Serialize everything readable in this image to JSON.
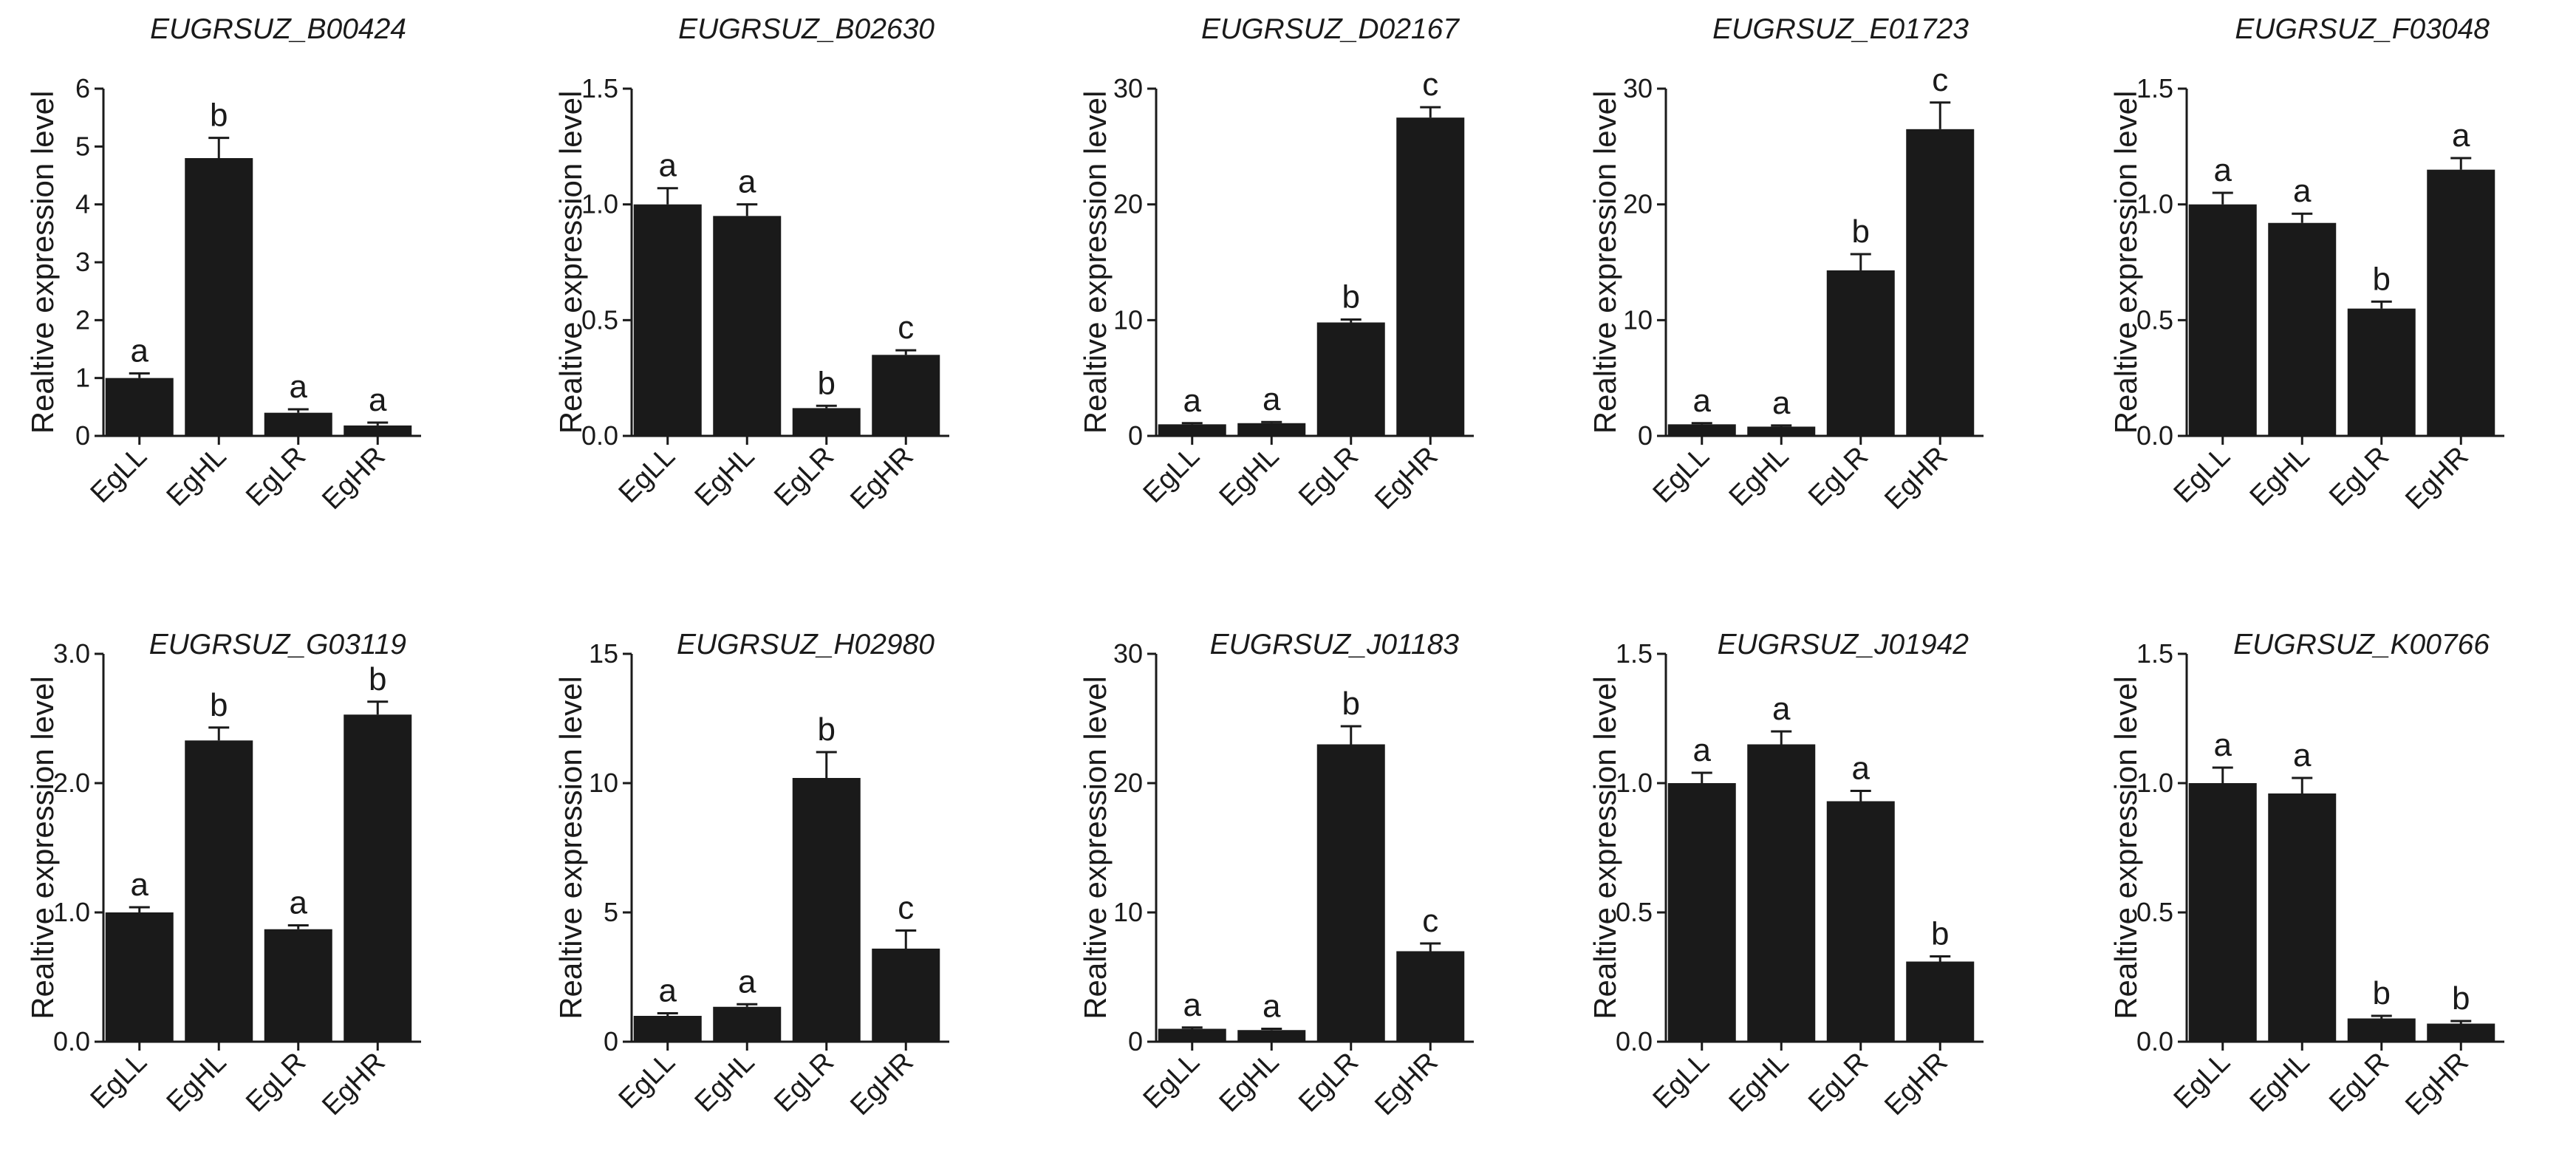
{
  "chart_data": [
    {
      "type": "bar",
      "title": "EUGRSUZ_B00424",
      "ylabel": "Realtive expression level",
      "categories": [
        "EgLL",
        "EgHL",
        "EgLR",
        "EgHR"
      ],
      "values": [
        1.0,
        4.8,
        0.4,
        0.18
      ],
      "errors": [
        0.08,
        0.35,
        0.06,
        0.05
      ],
      "letters": [
        "a",
        "b",
        "a",
        "a"
      ],
      "ylim": [
        0,
        6
      ],
      "yticks": [
        0,
        1,
        2,
        3,
        4,
        5,
        6
      ],
      "ytick_labels": [
        "0",
        "1",
        "2",
        "3",
        "4",
        "5",
        "6"
      ]
    },
    {
      "type": "bar",
      "title": "EUGRSUZ_B02630",
      "ylabel": "Realtive expression level",
      "categories": [
        "EgLL",
        "EgHL",
        "EgLR",
        "EgHR"
      ],
      "values": [
        1.0,
        0.95,
        0.12,
        0.35
      ],
      "errors": [
        0.07,
        0.05,
        0.01,
        0.02
      ],
      "letters": [
        "a",
        "a",
        "b",
        "c"
      ],
      "ylim": [
        0,
        1.5
      ],
      "yticks": [
        0,
        0.5,
        1.0,
        1.5
      ],
      "ytick_labels": [
        "0.0",
        "0.5",
        "1.0",
        "1.5"
      ]
    },
    {
      "type": "bar",
      "title": "EUGRSUZ_D02167",
      "ylabel": "Realtive expression level",
      "categories": [
        "EgLL",
        "EgHL",
        "EgLR",
        "EgHR"
      ],
      "values": [
        1.0,
        1.1,
        9.8,
        27.5
      ],
      "errors": [
        0.1,
        0.1,
        0.25,
        0.9
      ],
      "letters": [
        "a",
        "a",
        "b",
        "c"
      ],
      "ylim": [
        0,
        30
      ],
      "yticks": [
        0,
        10,
        20,
        30
      ],
      "ytick_labels": [
        "0",
        "10",
        "20",
        "30"
      ]
    },
    {
      "type": "bar",
      "title": "EUGRSUZ_E01723",
      "ylabel": "Realtive expression level",
      "categories": [
        "EgLL",
        "EgHL",
        "EgLR",
        "EgHR"
      ],
      "values": [
        1.0,
        0.8,
        14.3,
        26.5
      ],
      "errors": [
        0.1,
        0.1,
        1.4,
        2.3
      ],
      "letters": [
        "a",
        "a",
        "b",
        "c"
      ],
      "ylim": [
        0,
        30
      ],
      "yticks": [
        0,
        10,
        20,
        30
      ],
      "ytick_labels": [
        "0",
        "10",
        "20",
        "30"
      ]
    },
    {
      "type": "bar",
      "title": "EUGRSUZ_F03048",
      "ylabel": "Realtive expression level",
      "categories": [
        "EgLL",
        "EgHL",
        "EgLR",
        "EgHR"
      ],
      "values": [
        1.0,
        0.92,
        0.55,
        1.15
      ],
      "errors": [
        0.05,
        0.04,
        0.03,
        0.05
      ],
      "letters": [
        "a",
        "a",
        "b",
        "a"
      ],
      "ylim": [
        0,
        1.5
      ],
      "yticks": [
        0,
        0.5,
        1.0,
        1.5
      ],
      "ytick_labels": [
        "0.0",
        "0.5",
        "1.0",
        "1.5"
      ]
    },
    {
      "type": "bar",
      "title": "EUGRSUZ_G03119",
      "ylabel": "Realtive expression level",
      "categories": [
        "EgLL",
        "EgHL",
        "EgLR",
        "EgHR"
      ],
      "values": [
        1.0,
        2.33,
        0.87,
        2.53
      ],
      "errors": [
        0.04,
        0.1,
        0.03,
        0.1
      ],
      "letters": [
        "a",
        "b",
        "a",
        "b"
      ],
      "ylim": [
        0,
        3
      ],
      "yticks": [
        0,
        1,
        2,
        3
      ],
      "ytick_labels": [
        "0.0",
        "1.0",
        "2.0",
        "3.0"
      ]
    },
    {
      "type": "bar",
      "title": "EUGRSUZ_H02980",
      "ylabel": "Realtive expression level",
      "categories": [
        "EgLL",
        "EgHL",
        "EgLR",
        "EgHR"
      ],
      "values": [
        1.0,
        1.35,
        10.2,
        3.6
      ],
      "errors": [
        0.1,
        0.1,
        1.0,
        0.7
      ],
      "letters": [
        "a",
        "a",
        "b",
        "c"
      ],
      "ylim": [
        0,
        15
      ],
      "yticks": [
        0,
        5,
        10,
        15
      ],
      "ytick_labels": [
        "0",
        "5",
        "10",
        "15"
      ]
    },
    {
      "type": "bar",
      "title": "EUGRSUZ_J01183",
      "ylabel": "Realtive expression level",
      "categories": [
        "EgLL",
        "EgHL",
        "EgLR",
        "EgHR"
      ],
      "values": [
        1.0,
        0.9,
        23.0,
        7.0
      ],
      "errors": [
        0.1,
        0.1,
        1.4,
        0.6
      ],
      "letters": [
        "a",
        "a",
        "b",
        "c"
      ],
      "ylim": [
        0,
        30
      ],
      "yticks": [
        0,
        10,
        20,
        30
      ],
      "ytick_labels": [
        "0",
        "10",
        "20",
        "30"
      ]
    },
    {
      "type": "bar",
      "title": "EUGRSUZ_J01942",
      "ylabel": "Realtive expression level",
      "categories": [
        "EgLL",
        "EgHL",
        "EgLR",
        "EgHR"
      ],
      "values": [
        1.0,
        1.15,
        0.93,
        0.31
      ],
      "errors": [
        0.04,
        0.05,
        0.04,
        0.02
      ],
      "letters": [
        "a",
        "a",
        "a",
        "b"
      ],
      "ylim": [
        0,
        1.5
      ],
      "yticks": [
        0,
        0.5,
        1.0,
        1.5
      ],
      "ytick_labels": [
        "0.0",
        "0.5",
        "1.0",
        "1.5"
      ]
    },
    {
      "type": "bar",
      "title": "EUGRSUZ_K00766",
      "ylabel": "Realtive expression level",
      "categories": [
        "EgLL",
        "EgHL",
        "EgLR",
        "EgHR"
      ],
      "values": [
        1.0,
        0.96,
        0.09,
        0.07
      ],
      "errors": [
        0.06,
        0.06,
        0.01,
        0.01
      ],
      "letters": [
        "a",
        "a",
        "b",
        "b"
      ],
      "ylim": [
        0,
        1.5
      ],
      "yticks": [
        0,
        0.5,
        1.0,
        1.5
      ],
      "ytick_labels": [
        "0.0",
        "0.5",
        "1.0",
        "1.5"
      ]
    }
  ]
}
